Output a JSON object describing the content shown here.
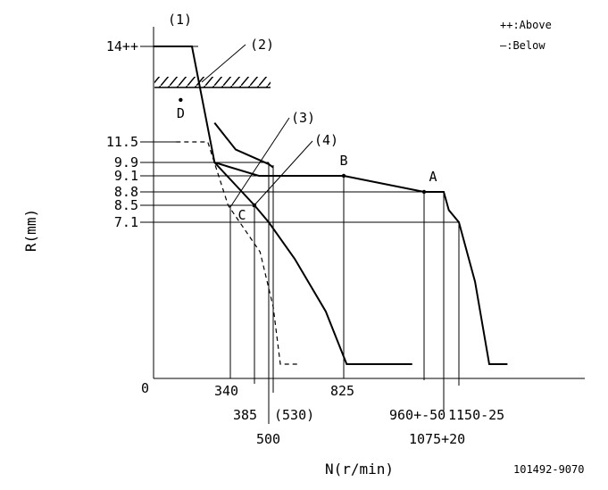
{
  "legend": {
    "above": "++:Above",
    "below": "—:Below"
  },
  "callouts": {
    "c1": "(1)",
    "c2": "(2)",
    "c3": "(3)",
    "c4": "(4)"
  },
  "points": {
    "A": "A",
    "B": "B",
    "C": "C",
    "D": "D"
  },
  "drawing_id": "101492-9070",
  "chart_data": {
    "type": "line",
    "title": "",
    "xlabel": "N(r/min)",
    "ylabel": "R(mm)",
    "origin_label": "0",
    "y_tick_labels": [
      "14++",
      "11.5",
      "9.9",
      "9.1",
      "8.8",
      "8.5",
      "7.1"
    ],
    "x_tick_labels": [
      "340",
      "385",
      "500",
      "(530)",
      "825",
      "960+-50",
      "1075+20",
      "1150-25"
    ],
    "x_ticks": [
      340,
      385,
      500,
      530,
      825,
      960,
      1075,
      1150
    ],
    "y_ticks": [
      14,
      11.5,
      9.9,
      9.1,
      8.8,
      8.5,
      7.1
    ],
    "x_axis_value_at_zero": 0,
    "series": [
      {
        "style": "solid",
        "points": [
          [
            0,
            14
          ],
          [
            170,
            14
          ],
          [
            270,
            9.9
          ],
          [
            420,
            9.1
          ],
          [
            825,
            9.1
          ],
          [
            960,
            8.8
          ],
          [
            1075,
            8.8
          ],
          [
            1100,
            8.1
          ],
          [
            1150,
            7.1
          ],
          [
            1230,
            4.5
          ],
          [
            1300,
            0.9
          ],
          [
            1390,
            0.9
          ]
        ]
      },
      {
        "style": "solid",
        "points": [
          [
            270,
            9.9
          ],
          [
            385,
            8.5
          ],
          [
            500,
            7.1
          ],
          [
            620,
            5.5
          ],
          [
            750,
            3.2
          ],
          [
            830,
            0.9
          ],
          [
            940,
            0.9
          ]
        ]
      },
      {
        "style": "solid",
        "points": [
          [
            270,
            12
          ],
          [
            350,
            10.9
          ],
          [
            500,
            9.8
          ],
          [
            530,
            9.6
          ]
        ]
      },
      {
        "style": "dashed",
        "points": [
          [
            100,
            11.5
          ],
          [
            240,
            11.5
          ],
          [
            330,
            8.5
          ],
          [
            430,
            5.8
          ],
          [
            530,
            3.4
          ],
          [
            560,
            0.9
          ],
          [
            640,
            0.9
          ]
        ]
      }
    ],
    "annotated_points": [
      {
        "label": "A",
        "x": 960,
        "y": 8.8
      },
      {
        "label": "B",
        "x": 825,
        "y": 9.1
      },
      {
        "label": "C",
        "x": 385,
        "y": 8.5
      },
      {
        "label": "D",
        "x": 120,
        "y": 12.6
      }
    ],
    "grid": false,
    "legend_position": "top-right"
  }
}
